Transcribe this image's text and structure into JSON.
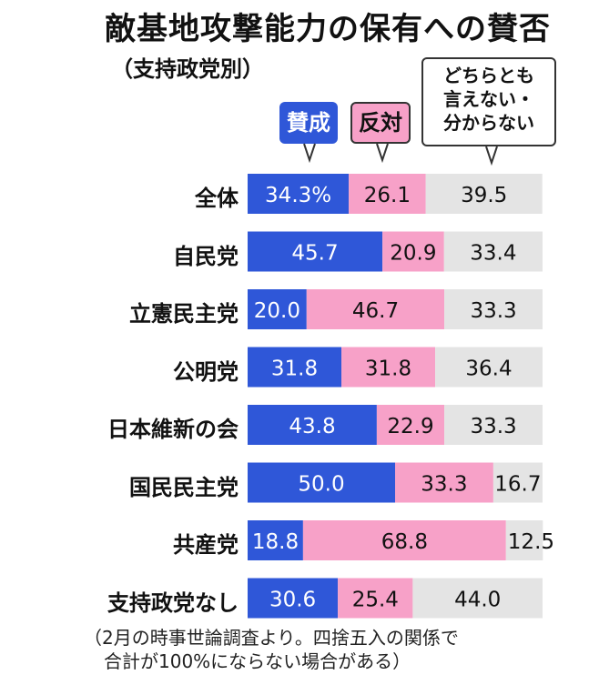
{
  "title": "敵基地攻撃能力の保有への賛否",
  "subtitle": "（支持政党別）",
  "legend": {
    "approve": "賛成",
    "oppose": "反対",
    "neutral_lines": [
      "どちらとも",
      "言えない・",
      "分からない"
    ]
  },
  "colors": {
    "approve": "#2f57d8",
    "oppose": "#f7a1c8",
    "neutral": "#e4e4e4"
  },
  "footnote_lines": [
    "（2月の時事世論調査より。四捨五入の関係で",
    "合計が100%にならない場合がある）"
  ],
  "chart_data": {
    "type": "bar",
    "orientation": "horizontal",
    "stacked": true,
    "categories": [
      "全体",
      "自民党",
      "立憲民主党",
      "公明党",
      "日本維新の会",
      "国民民主党",
      "共産党",
      "支持政党なし"
    ],
    "series": [
      {
        "name": "賛成",
        "values": [
          34.3,
          45.7,
          20.0,
          31.8,
          43.8,
          50.0,
          18.8,
          30.6
        ],
        "labels": [
          "34.3%",
          "45.7",
          "20.0",
          "31.8",
          "43.8",
          "50.0",
          "18.8",
          "30.6"
        ]
      },
      {
        "name": "反対",
        "values": [
          26.1,
          20.9,
          46.7,
          31.8,
          22.9,
          33.3,
          68.8,
          25.4
        ],
        "labels": [
          "26.1",
          "20.9",
          "46.7",
          "31.8",
          "22.9",
          "33.3",
          "68.8",
          "25.4"
        ]
      },
      {
        "name": "どちらとも言えない・分からない",
        "values": [
          39.5,
          33.4,
          33.3,
          36.4,
          33.3,
          16.7,
          12.5,
          44.0
        ],
        "labels": [
          "39.5",
          "33.4",
          "33.3",
          "36.4",
          "33.3",
          "16.7",
          "12.5",
          "44.0"
        ]
      }
    ],
    "xlim": [
      0,
      100
    ]
  }
}
